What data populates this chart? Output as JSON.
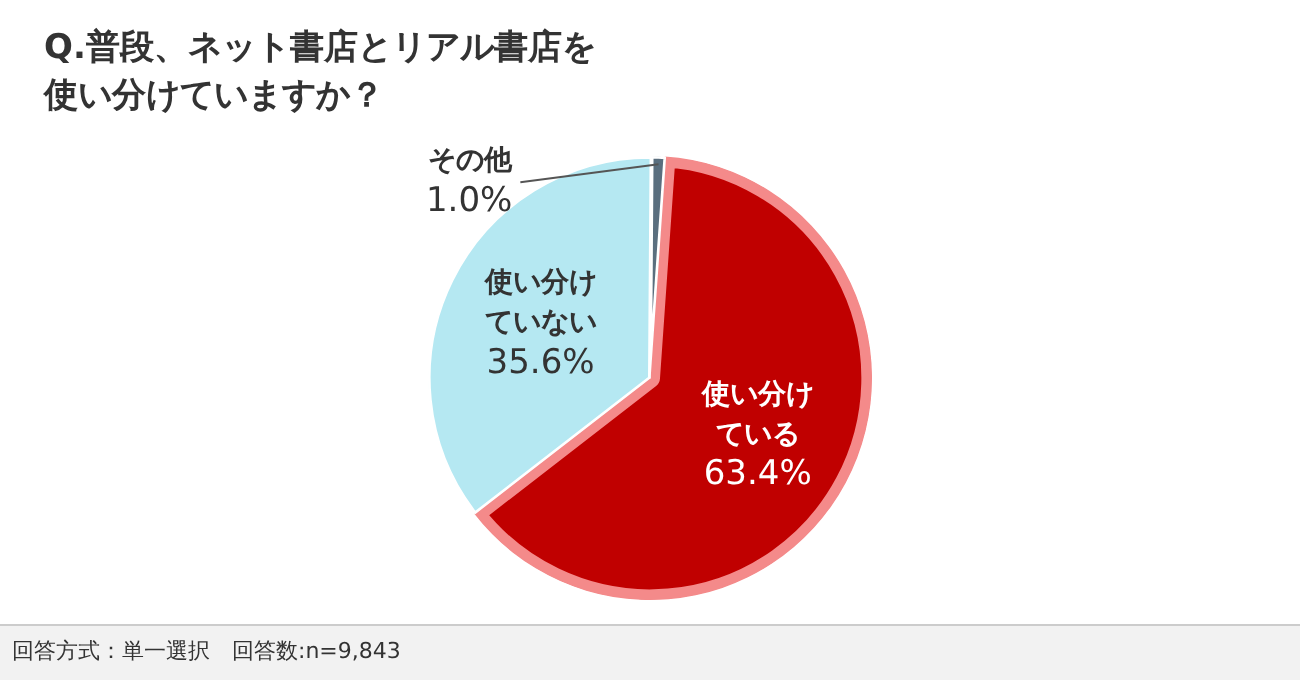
{
  "chart_data": {
    "type": "pie",
    "title": "Q.普段、ネット書店とリアル書店を使い分けていますか？",
    "categories": [
      "使い分けている",
      "使い分けていない",
      "その他"
    ],
    "values": [
      63.4,
      35.6,
      1.0
    ],
    "value_labels": [
      "63.4%",
      "35.6%",
      "1.0%"
    ],
    "colors": [
      "#c00000",
      "#b5e8f2",
      "#5a6e7e"
    ],
    "annotations": [
      "回答方式：単一選択　回答数:n=9,843"
    ],
    "legend": false
  }
}
